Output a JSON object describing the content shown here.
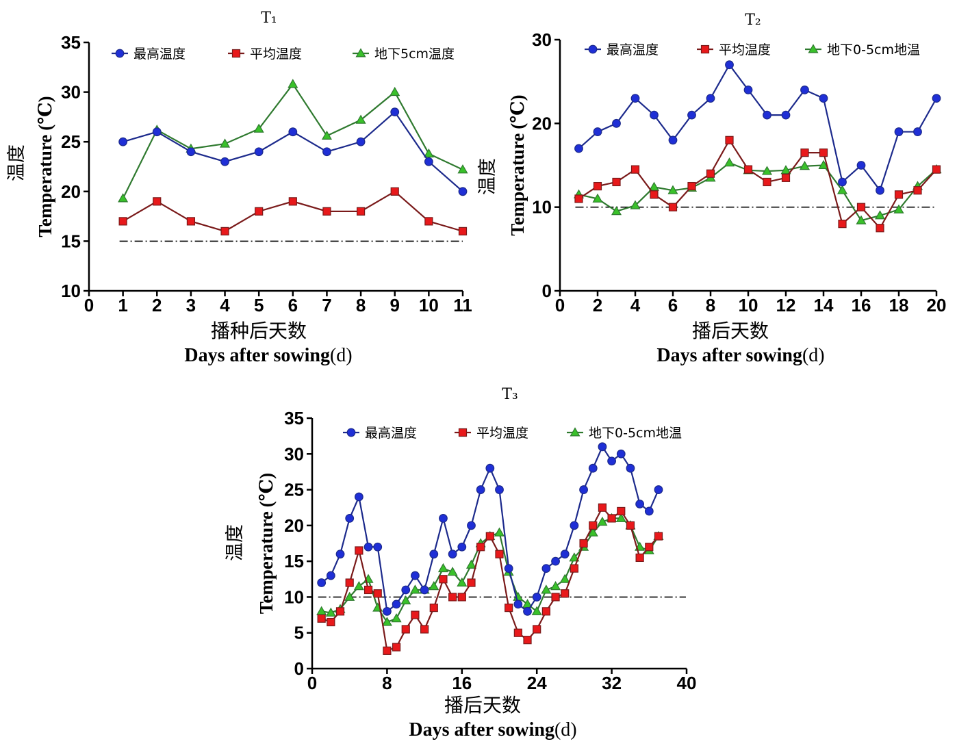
{
  "colors": {
    "max": "#1c2a8c",
    "max_marker": "#1f2fd6",
    "avg": "#7a1a1a",
    "avg_marker": "#e8191b",
    "soil": "#2f7a2f",
    "soil_marker": "#39c12a",
    "threshold": "#000000"
  },
  "chart_data": [
    {
      "type": "line",
      "title": "T₁",
      "xlabel_cn": "播种后天数",
      "xlabel_en": "Days after sowing",
      "xlabel_unit": "(d)",
      "ylabel_cn": "温度",
      "ylabel_en": "Temperature",
      "ylabel_unit": "(℃)",
      "xlim": [
        0,
        11
      ],
      "ylim": [
        10,
        35
      ],
      "xticks": [
        0,
        1,
        2,
        3,
        4,
        5,
        6,
        7,
        8,
        9,
        10,
        11
      ],
      "yticks": [
        10,
        15,
        20,
        25,
        30,
        35
      ],
      "threshold": 15,
      "legend_position": "top",
      "x": [
        1,
        2,
        3,
        4,
        5,
        6,
        7,
        8,
        9,
        10,
        11
      ],
      "series": [
        {
          "name": "最高温度",
          "marker": "circle",
          "values": [
            25,
            26,
            24,
            23,
            24,
            26,
            24,
            25,
            28,
            23,
            20
          ]
        },
        {
          "name": "平均温度",
          "marker": "square",
          "values": [
            17,
            19,
            17,
            16,
            18,
            19,
            18,
            18,
            20,
            17,
            16
          ]
        },
        {
          "name": "地下5cm温度",
          "marker": "triangle",
          "values": [
            19.3,
            26.2,
            24.3,
            24.8,
            26.3,
            30.8,
            25.6,
            27.2,
            30,
            23.8,
            22.2
          ]
        }
      ]
    },
    {
      "type": "line",
      "title": "T₂",
      "xlabel_cn": "播后天数",
      "xlabel_en": "Days after sowing",
      "xlabel_unit": "(d)",
      "ylabel_cn": "温度",
      "ylabel_en": "Temperature",
      "ylabel_unit": "(℃)",
      "xlim": [
        0,
        20
      ],
      "ylim": [
        0,
        30
      ],
      "xticks": [
        0,
        2,
        4,
        6,
        8,
        10,
        12,
        14,
        16,
        18,
        20
      ],
      "yticks": [
        0,
        10,
        20,
        30
      ],
      "threshold": 10,
      "legend_position": "top",
      "x": [
        1,
        2,
        3,
        4,
        5,
        6,
        7,
        8,
        9,
        10,
        11,
        12,
        13,
        14,
        15,
        16,
        17,
        18,
        19,
        20
      ],
      "series": [
        {
          "name": "最高温度",
          "marker": "circle",
          "values": [
            17,
            19,
            20,
            23,
            21,
            18,
            21,
            23,
            27,
            24,
            21,
            21,
            24,
            23,
            13,
            15,
            12,
            19,
            19,
            23
          ]
        },
        {
          "name": "平均温度",
          "marker": "square",
          "values": [
            11,
            12.5,
            13,
            14.5,
            11.5,
            10,
            12.5,
            14,
            18,
            14.5,
            13,
            13.5,
            16.5,
            16.5,
            8,
            10,
            7.5,
            11.5,
            12,
            14.5
          ]
        },
        {
          "name": "地下0-5cm地温",
          "marker": "triangle",
          "values": [
            11.5,
            11,
            9.5,
            10.2,
            12.4,
            12,
            12.3,
            13.5,
            15.3,
            14.4,
            14.3,
            14.4,
            14.9,
            15,
            12,
            8.4,
            9,
            9.7,
            12.5,
            14.5
          ]
        }
      ]
    },
    {
      "type": "line",
      "title": "T₃",
      "xlabel_cn": "播后天数",
      "xlabel_en": "Days after sowing",
      "xlabel_unit": "(d)",
      "ylabel_cn": "温度",
      "ylabel_en": "Temperature",
      "ylabel_unit": "(℃)",
      "xlim": [
        0,
        40
      ],
      "ylim": [
        0,
        35
      ],
      "xticks": [
        0,
        8,
        16,
        24,
        32,
        40
      ],
      "yticks": [
        0,
        5,
        10,
        15,
        20,
        25,
        30,
        35
      ],
      "threshold": 10,
      "legend_position": "top",
      "x": [
        1,
        2,
        3,
        4,
        5,
        6,
        7,
        8,
        9,
        10,
        11,
        12,
        13,
        14,
        15,
        16,
        17,
        18,
        19,
        20,
        21,
        22,
        23,
        24,
        25,
        26,
        27,
        28,
        29,
        30,
        31,
        32,
        33,
        34,
        35,
        36,
        37
      ],
      "series": [
        {
          "name": "最高温度",
          "marker": "circle",
          "values": [
            12,
            13,
            16,
            21,
            24,
            17,
            17,
            8,
            9,
            11,
            13,
            11,
            16,
            21,
            16,
            17,
            20,
            25,
            28,
            25,
            14,
            9,
            8,
            10,
            14,
            15,
            16,
            20,
            25,
            28,
            31,
            29,
            30,
            28,
            23,
            22,
            25
          ]
        },
        {
          "name": "平均温度",
          "marker": "square",
          "values": [
            7,
            6.5,
            8,
            12,
            16.5,
            11,
            10.5,
            2.5,
            3,
            5.5,
            7.5,
            5.5,
            8.5,
            12.5,
            10,
            10,
            12,
            17,
            18.5,
            16,
            8.5,
            5,
            4,
            5.5,
            8,
            10,
            10.5,
            14,
            17.5,
            20,
            22.5,
            21,
            22,
            20,
            15.5,
            17,
            18.5
          ]
        },
        {
          "name": "地下0-5cm地温",
          "marker": "triangle",
          "values": [
            8,
            7.8,
            8.3,
            10,
            11.5,
            12.5,
            8.5,
            6.5,
            7,
            9.5,
            11,
            11,
            11.5,
            14,
            13.5,
            12,
            14.5,
            17.5,
            18.5,
            19,
            13.5,
            10,
            9,
            8,
            11,
            11.5,
            12.5,
            15.5,
            17,
            19,
            20.5,
            21,
            21,
            20,
            17,
            16.5,
            18.5
          ]
        }
      ]
    }
  ]
}
